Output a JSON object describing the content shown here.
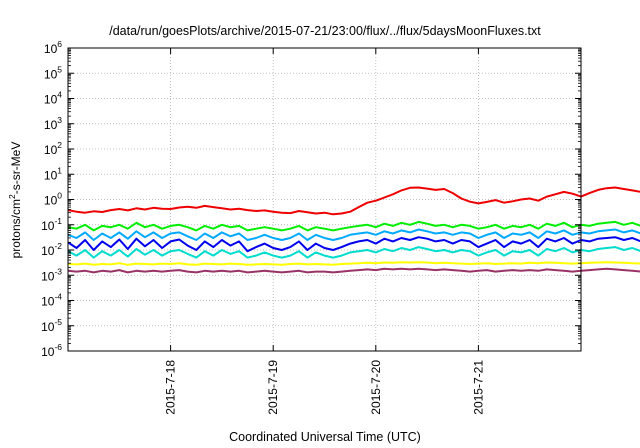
{
  "chart_data": {
    "type": "line",
    "title": "/data/run/goesPlots/archive/2015-07-21/23:00/flux/../flux/5daysMoonFluxes.txt",
    "xlabel": "Coordinated Universal Time (UTC)",
    "ylabel": {
      "prefix": "protons/cm",
      "sup": "2",
      "suffix": "-s-sr-MeV"
    },
    "y_scale": "log",
    "ylim": [
      1e-06,
      1000000.0
    ],
    "y_ticks": [
      {
        "base": "10",
        "exp": "-6",
        "value": 1e-06
      },
      {
        "base": "10",
        "exp": "-5",
        "value": 1e-05
      },
      {
        "base": "10",
        "exp": "-4",
        "value": 0.0001
      },
      {
        "base": "10",
        "exp": "-3",
        "value": 0.001
      },
      {
        "base": "10",
        "exp": "-2",
        "value": 0.01
      },
      {
        "base": "10",
        "exp": "-1",
        "value": 0.1
      },
      {
        "base": "10",
        "exp": "0",
        "value": 1
      },
      {
        "base": "10",
        "exp": "1",
        "value": 10
      },
      {
        "base": "10",
        "exp": "2",
        "value": 100
      },
      {
        "base": "10",
        "exp": "3",
        "value": 1000
      },
      {
        "base": "10",
        "exp": "4",
        "value": 10000
      },
      {
        "base": "10",
        "exp": "5",
        "value": 100000
      },
      {
        "base": "10",
        "exp": "6",
        "value": 1000000
      }
    ],
    "xlim": [
      "2015-07-17 00:00",
      "2015-07-22 00:00"
    ],
    "x_ticks": [
      "2015-7-18",
      "2015-7-19",
      "2015-7-20",
      "2015-7-21"
    ],
    "grid": true,
    "x_step_hours": 2,
    "series": [
      {
        "color": "#ee0000",
        "values": [
          0.38,
          0.33,
          0.3,
          0.34,
          0.32,
          0.38,
          0.42,
          0.37,
          0.45,
          0.4,
          0.47,
          0.43,
          0.42,
          0.48,
          0.52,
          0.47,
          0.56,
          0.5,
          0.45,
          0.4,
          0.43,
          0.38,
          0.35,
          0.37,
          0.33,
          0.3,
          0.29,
          0.35,
          0.31,
          0.28,
          0.3,
          0.26,
          0.28,
          0.33,
          0.5,
          0.75,
          0.9,
          1.2,
          1.6,
          2.3,
          2.9,
          3.0,
          2.7,
          2.4,
          2.6,
          1.8,
          1.1,
          0.82,
          0.7,
          0.8,
          0.95,
          0.75,
          0.85,
          1.0,
          1.1,
          0.9,
          1.3,
          1.6,
          2.0,
          1.7,
          1.3,
          1.8,
          2.4,
          2.8,
          3.0,
          2.6,
          2.3,
          2.0,
          1.7,
          1.4,
          1.2,
          1.5,
          1.9,
          2.2,
          2.0,
          1.8,
          2.4,
          2.0,
          1.7,
          3.5,
          2.0,
          1.5,
          1.7,
          1.9,
          1.6,
          1.4,
          1.3,
          1.1,
          1.0,
          0.9,
          1.1,
          1.3,
          1.5,
          1.2,
          1.0,
          0.8,
          0.7,
          0.85,
          0.9,
          1.1,
          0.95,
          1.3,
          1.0,
          0.8,
          0.95,
          0.85,
          1.05,
          1.25,
          1.1,
          1.6,
          1.3,
          1.2,
          1.0,
          0.9,
          0.8,
          0.7,
          0.95,
          1.15,
          1.25,
          1.05,
          0.9,
          0.75,
          0.85,
          1.0,
          0.9,
          0.7,
          0.85,
          0.95,
          0.8,
          0.7,
          0.85,
          0.95,
          1.1,
          1.25,
          1.0,
          0.9,
          0.8,
          0.85,
          0.7,
          0.6,
          0.55,
          0.65,
          0.85,
          0.75,
          0.6,
          0.55,
          0.5,
          0.6,
          0.55,
          0.5
        ]
      },
      {
        "color": "#00ee00",
        "values": [
          0.08,
          0.07,
          0.1,
          0.06,
          0.09,
          0.08,
          0.1,
          0.07,
          0.12,
          0.08,
          0.1,
          0.07,
          0.09,
          0.1,
          0.08,
          0.06,
          0.09,
          0.07,
          0.1,
          0.08,
          0.09,
          0.06,
          0.07,
          0.08,
          0.07,
          0.06,
          0.07,
          0.09,
          0.06,
          0.08,
          0.07,
          0.06,
          0.07,
          0.08,
          0.09,
          0.1,
          0.08,
          0.11,
          0.09,
          0.12,
          0.1,
          0.13,
          0.11,
          0.09,
          0.1,
          0.08,
          0.1,
          0.09,
          0.07,
          0.08,
          0.1,
          0.07,
          0.09,
          0.08,
          0.1,
          0.07,
          0.11,
          0.09,
          0.12,
          0.08,
          0.1,
          0.09,
          0.11,
          0.12,
          0.13,
          0.1,
          0.12,
          0.09,
          0.11,
          0.1,
          0.12,
          0.1,
          0.11,
          0.13,
          0.1,
          0.12,
          0.11,
          0.1,
          0.12,
          0.14,
          0.1,
          0.11,
          0.12,
          0.1,
          0.11,
          0.13,
          0.1,
          0.12,
          0.11,
          0.09,
          0.12,
          0.1,
          0.11,
          0.1,
          0.12,
          0.09,
          0.1,
          0.12,
          0.1,
          0.11,
          0.09,
          0.12,
          0.1,
          0.11,
          0.1,
          0.09,
          0.12,
          0.13,
          0.1,
          0.12,
          0.11,
          0.1,
          0.09,
          0.12,
          0.1,
          0.11,
          0.12,
          0.09,
          0.11,
          0.1,
          0.12,
          0.1,
          0.11,
          0.13,
          0.1,
          0.12,
          0.11,
          0.1,
          0.12,
          0.11,
          0.13,
          0.1,
          0.12,
          0.11,
          0.13,
          0.12,
          0.14,
          0.12,
          0.13,
          0.15,
          0.14,
          0.16,
          0.15,
          0.17,
          0.16,
          0.18,
          0.17,
          0.18,
          0.19,
          0.2
        ]
      },
      {
        "color": "#00aaff",
        "values": [
          0.04,
          0.03,
          0.05,
          0.025,
          0.045,
          0.03,
          0.05,
          0.028,
          0.055,
          0.032,
          0.05,
          0.03,
          0.045,
          0.05,
          0.035,
          0.025,
          0.045,
          0.03,
          0.05,
          0.035,
          0.045,
          0.025,
          0.03,
          0.04,
          0.03,
          0.025,
          0.03,
          0.045,
          0.025,
          0.04,
          0.03,
          0.025,
          0.03,
          0.04,
          0.045,
          0.05,
          0.04,
          0.055,
          0.045,
          0.06,
          0.05,
          0.065,
          0.055,
          0.045,
          0.05,
          0.04,
          0.05,
          0.045,
          0.03,
          0.04,
          0.05,
          0.03,
          0.045,
          0.04,
          0.05,
          0.03,
          0.055,
          0.045,
          0.06,
          0.04,
          0.05,
          0.045,
          0.055,
          0.06,
          0.065,
          0.05,
          0.06,
          0.045,
          0.055,
          0.05,
          0.06,
          0.05,
          0.055,
          0.065,
          0.05,
          0.06,
          0.055,
          0.05,
          0.06,
          0.07,
          0.05,
          0.055,
          0.06,
          0.05,
          0.055,
          0.065,
          0.05,
          0.06,
          0.055,
          0.045,
          0.06,
          0.05,
          0.055,
          0.05,
          0.06,
          0.045,
          0.05,
          0.06,
          0.05,
          0.055,
          0.045,
          0.06,
          0.05,
          0.055,
          0.05,
          0.045,
          0.06,
          0.065,
          0.05,
          0.06,
          0.055,
          0.05,
          0.045,
          0.06,
          0.05,
          0.055,
          0.06,
          0.045,
          0.055,
          0.05,
          0.06,
          0.05,
          0.055,
          0.065,
          0.05,
          0.06,
          0.055,
          0.05,
          0.06,
          0.055,
          0.065,
          0.05,
          0.06,
          0.055,
          0.065,
          0.06,
          0.07,
          0.06,
          0.065,
          0.075,
          0.07,
          0.08,
          0.075,
          0.085,
          0.08,
          0.09,
          0.085,
          0.09,
          0.095,
          0.1
        ]
      },
      {
        "color": "#0000ee",
        "values": [
          0.02,
          0.012,
          0.025,
          0.01,
          0.022,
          0.013,
          0.026,
          0.011,
          0.028,
          0.014,
          0.025,
          0.012,
          0.022,
          0.026,
          0.015,
          0.01,
          0.022,
          0.013,
          0.025,
          0.015,
          0.022,
          0.009,
          0.013,
          0.018,
          0.012,
          0.01,
          0.013,
          0.022,
          0.01,
          0.018,
          0.012,
          0.01,
          0.013,
          0.018,
          0.022,
          0.025,
          0.018,
          0.028,
          0.022,
          0.03,
          0.025,
          0.032,
          0.028,
          0.022,
          0.025,
          0.018,
          0.025,
          0.022,
          0.013,
          0.018,
          0.025,
          0.013,
          0.022,
          0.018,
          0.025,
          0.013,
          0.028,
          0.022,
          0.03,
          0.018,
          0.025,
          0.022,
          0.028,
          0.03,
          0.032,
          0.025,
          0.03,
          0.022,
          0.028,
          0.025,
          0.03,
          0.025,
          0.028,
          0.032,
          0.025,
          0.03,
          0.028,
          0.025,
          0.03,
          0.035,
          0.025,
          0.028,
          0.03,
          0.025,
          0.028,
          0.032,
          0.025,
          0.03,
          0.028,
          0.022,
          0.03,
          0.025,
          0.028,
          0.025,
          0.03,
          0.022,
          0.025,
          0.03,
          0.025,
          0.028,
          0.022,
          0.03,
          0.025,
          0.028,
          0.025,
          0.022,
          0.03,
          0.032,
          0.025,
          0.03,
          0.028,
          0.025,
          0.022,
          0.03,
          0.025,
          0.028,
          0.03,
          0.022,
          0.028,
          0.025,
          0.03,
          0.025,
          0.028,
          0.032,
          0.025,
          0.03,
          0.028,
          0.025,
          0.03,
          0.028,
          0.032,
          0.025,
          0.03,
          0.028,
          0.032,
          0.03,
          0.035,
          0.03,
          0.032,
          0.037,
          0.035,
          0.04,
          0.037,
          0.042,
          0.04,
          0.045,
          0.042,
          0.045,
          0.047,
          0.05
        ]
      },
      {
        "color": "#00ddcc",
        "values": [
          0.009,
          0.006,
          0.01,
          0.005,
          0.009,
          0.006,
          0.01,
          0.0055,
          0.011,
          0.0065,
          0.01,
          0.006,
          0.009,
          0.01,
          0.007,
          0.005,
          0.009,
          0.006,
          0.01,
          0.007,
          0.009,
          0.005,
          0.006,
          0.008,
          0.006,
          0.005,
          0.006,
          0.009,
          0.005,
          0.008,
          0.006,
          0.005,
          0.006,
          0.008,
          0.009,
          0.01,
          0.008,
          0.011,
          0.009,
          0.012,
          0.01,
          0.013,
          0.011,
          0.009,
          0.01,
          0.008,
          0.01,
          0.009,
          0.006,
          0.008,
          0.01,
          0.006,
          0.009,
          0.008,
          0.01,
          0.006,
          0.011,
          0.009,
          0.012,
          0.008,
          0.01,
          0.009,
          0.011,
          0.012,
          0.013,
          0.01,
          0.012,
          0.009,
          0.011,
          0.01,
          0.012,
          0.01,
          0.011,
          0.013,
          0.01,
          0.012,
          0.011,
          0.01,
          0.012,
          0.014,
          0.01,
          0.011,
          0.012,
          0.01,
          0.011,
          0.013,
          0.01,
          0.012,
          0.011,
          0.009,
          0.012,
          0.01,
          0.011,
          0.01,
          0.012,
          0.009,
          0.01,
          0.012,
          0.01,
          0.011,
          0.009,
          0.012,
          0.01,
          0.011,
          0.01,
          0.009,
          0.012,
          0.013,
          0.01,
          0.012,
          0.011,
          0.01,
          0.009,
          0.012,
          0.01,
          0.011,
          0.012,
          0.009,
          0.011,
          0.01,
          0.012,
          0.01,
          0.011,
          0.013,
          0.01,
          0.012,
          0.011,
          0.01,
          0.012,
          0.011,
          0.013,
          0.01,
          0.012,
          0.011,
          0.013,
          0.012,
          0.014,
          0.012,
          0.013,
          0.015,
          0.014,
          0.016,
          0.015,
          0.017,
          0.016,
          0.018,
          0.017,
          0.018,
          0.019,
          0.02
        ]
      },
      {
        "color": "#ffff00",
        "values": [
          0.0028,
          0.0027,
          0.0029,
          0.0026,
          0.0028,
          0.0027,
          0.003,
          0.0026,
          0.0029,
          0.0028,
          0.0027,
          0.0029,
          0.0028,
          0.003,
          0.0027,
          0.0026,
          0.0029,
          0.0028,
          0.0027,
          0.0029,
          0.0028,
          0.0026,
          0.0027,
          0.0028,
          0.0027,
          0.0026,
          0.0028,
          0.0029,
          0.0027,
          0.0028,
          0.0027,
          0.0026,
          0.0028,
          0.0029,
          0.003,
          0.0031,
          0.003,
          0.0032,
          0.0031,
          0.0033,
          0.0032,
          0.0033,
          0.0032,
          0.003,
          0.0031,
          0.003,
          0.0029,
          0.0028,
          0.0029,
          0.003,
          0.0028,
          0.0029,
          0.003,
          0.0029,
          0.0031,
          0.003,
          0.0032,
          0.0031,
          0.003,
          0.0029,
          0.003,
          0.0031,
          0.0032,
          0.0033,
          0.0032,
          0.0031,
          0.003,
          0.0029,
          0.003,
          0.0031,
          0.0032,
          0.0031,
          0.003,
          0.0031,
          0.0032,
          0.003,
          0.0031,
          0.0032,
          0.0033,
          0.003,
          0.0031,
          0.0032,
          0.003,
          0.0031,
          0.003,
          0.0029,
          0.003,
          0.0031,
          0.003,
          0.0029,
          0.003,
          0.0031,
          0.003,
          0.0031,
          0.003,
          0.0029,
          0.003,
          0.0031,
          0.003,
          0.0029,
          0.003,
          0.0031,
          0.003,
          0.0029,
          0.003,
          0.0031,
          0.0032,
          0.003,
          0.0031,
          0.003,
          0.0029,
          0.003,
          0.0031,
          0.003,
          0.0029,
          0.003,
          0.0031,
          0.003,
          0.0031,
          0.003,
          0.0029,
          0.003,
          0.0031,
          0.0032,
          0.003,
          0.0031,
          0.003,
          0.0029,
          0.003,
          0.0031,
          0.003,
          0.0029,
          0.003,
          0.0031,
          0.003,
          0.0031,
          0.0032,
          0.0031,
          0.0033,
          0.0032,
          0.0031,
          0.0033,
          0.0032,
          0.0034,
          0.0033,
          0.0035,
          0.0034,
          0.0036
        ]
      },
      {
        "color": "#993366",
        "values": [
          0.0015,
          0.0014,
          0.0015,
          0.0013,
          0.0015,
          0.0014,
          0.0016,
          0.0013,
          0.0015,
          0.0014,
          0.0015,
          0.0014,
          0.0015,
          0.0016,
          0.0014,
          0.0013,
          0.0015,
          0.0014,
          0.0015,
          0.0014,
          0.0015,
          0.0013,
          0.0014,
          0.0015,
          0.0014,
          0.0013,
          0.0014,
          0.0015,
          0.0013,
          0.0014,
          0.0014,
          0.0013,
          0.0014,
          0.0015,
          0.0016,
          0.0017,
          0.0016,
          0.0018,
          0.0017,
          0.0018,
          0.0017,
          0.0018,
          0.0017,
          0.0016,
          0.0017,
          0.0016,
          0.0015,
          0.0014,
          0.0015,
          0.0016,
          0.0014,
          0.0015,
          0.0016,
          0.0015,
          0.0016,
          0.0015,
          0.0017,
          0.0016,
          0.0015,
          0.0014,
          0.0015,
          0.0016,
          0.0017,
          0.0018,
          0.0017,
          0.0016,
          0.0015,
          0.0014,
          0.0015,
          0.0016,
          0.0017,
          0.0016,
          0.0015,
          0.0016,
          0.0017,
          0.0015,
          0.0016,
          0.0017,
          0.0018,
          0.0015,
          0.0016,
          0.0017,
          0.0015,
          0.0016,
          0.0015,
          0.0014,
          0.0015,
          0.0016,
          0.0015,
          0.0014,
          0.0015,
          0.0016,
          0.0015,
          0.0016,
          0.0015,
          0.0014,
          0.0015,
          0.0016,
          0.0015,
          0.0014,
          0.0015,
          0.0016,
          0.0015,
          0.0014,
          0.0015,
          0.0016,
          0.0017,
          0.0015,
          0.0016,
          0.0015,
          0.0014,
          0.0015,
          0.0016,
          0.0015,
          0.0014,
          0.0015,
          0.0016,
          0.0015,
          0.0016,
          0.0015,
          0.0014,
          0.0015,
          0.0016,
          0.0017,
          0.0015,
          0.0016,
          0.0015,
          0.0014,
          0.0015,
          0.0016,
          0.0015,
          0.0014,
          0.0015,
          0.0016,
          0.0015,
          0.0016,
          0.0017,
          0.0016,
          0.0018,
          0.0017,
          0.0016,
          0.0018,
          0.0017,
          0.0019,
          0.0018,
          0.0019,
          0.0018,
          0.0019
        ]
      }
    ]
  }
}
